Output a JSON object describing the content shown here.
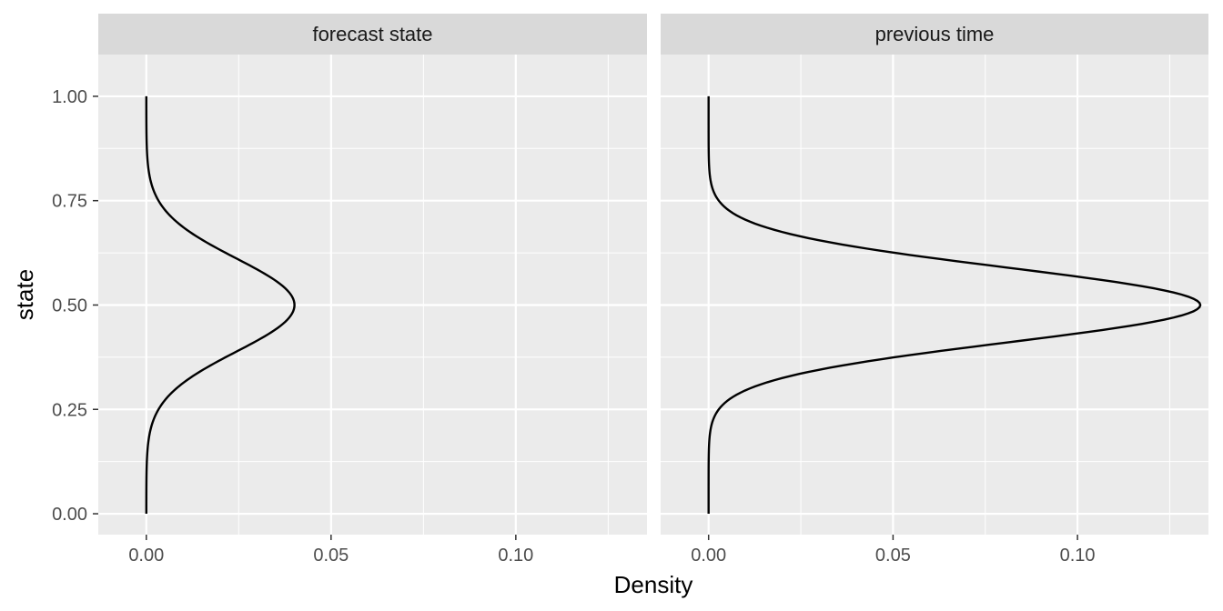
{
  "chart_data": {
    "type": "line",
    "orientation": "density curve plotted horizontally (density on x, state on y)",
    "xlabel": "Density",
    "ylabel": "state",
    "xlim": [
      -0.013,
      0.1355
    ],
    "ylim": [
      -0.05,
      1.1
    ],
    "x_ticks": [
      "0.00",
      "0.05",
      "0.10"
    ],
    "y_ticks": [
      "0.00",
      "0.25",
      "0.50",
      "0.75",
      "1.00"
    ],
    "grid": true,
    "panels": [
      {
        "label": "forecast state",
        "series": [
          {
            "color": "#000000",
            "points": [
              {
                "state": 0.0,
                "density": 0.0
              },
              {
                "state": 0.15,
                "density": 0.0003
              },
              {
                "state": 0.2,
                "density": 0.0011
              },
              {
                "state": 0.25,
                "density": 0.0034
              },
              {
                "state": 0.3,
                "density": 0.0087
              },
              {
                "state": 0.35,
                "density": 0.0177
              },
              {
                "state": 0.4,
                "density": 0.0289
              },
              {
                "state": 0.45,
                "density": 0.0377
              },
              {
                "state": 0.5,
                "density": 0.0401
              },
              {
                "state": 0.55,
                "density": 0.0377
              },
              {
                "state": 0.6,
                "density": 0.0289
              },
              {
                "state": 0.65,
                "density": 0.0177
              },
              {
                "state": 0.7,
                "density": 0.0087
              },
              {
                "state": 0.75,
                "density": 0.0034
              },
              {
                "state": 0.8,
                "density": 0.0011
              },
              {
                "state": 0.85,
                "density": 0.0003
              },
              {
                "state": 1.0,
                "density": 0.0
              }
            ]
          }
        ]
      },
      {
        "label": "previous time",
        "series": [
          {
            "color": "#000000",
            "points": [
              {
                "state": 0.0,
                "density": 0.0
              },
              {
                "state": 0.2,
                "density": 0.0005
              },
              {
                "state": 0.25,
                "density": 0.0025
              },
              {
                "state": 0.3,
                "density": 0.011
              },
              {
                "state": 0.35,
                "density": 0.0325
              },
              {
                "state": 0.4,
                "density": 0.0727
              },
              {
                "state": 0.45,
                "density": 0.1158
              },
              {
                "state": 0.5,
                "density": 0.1333
              },
              {
                "state": 0.55,
                "density": 0.1158
              },
              {
                "state": 0.6,
                "density": 0.0727
              },
              {
                "state": 0.65,
                "density": 0.0325
              },
              {
                "state": 0.7,
                "density": 0.011
              },
              {
                "state": 0.75,
                "density": 0.0025
              },
              {
                "state": 0.8,
                "density": 0.0005
              },
              {
                "state": 1.0,
                "density": 0.0
              }
            ]
          }
        ]
      }
    ]
  }
}
